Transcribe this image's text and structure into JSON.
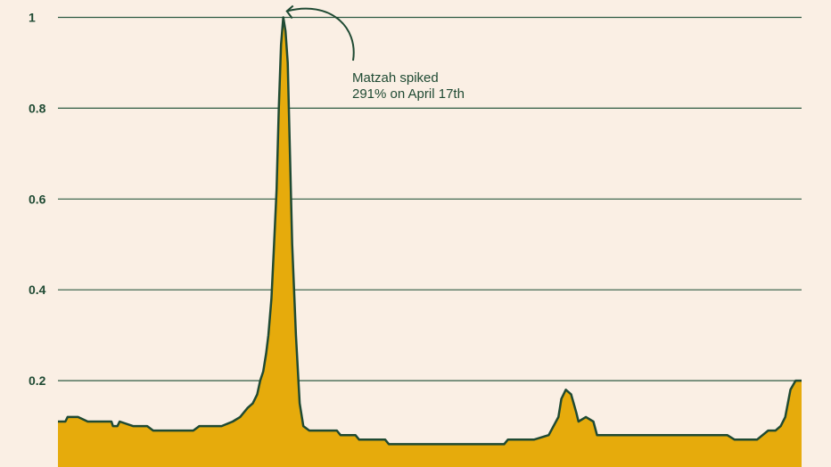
{
  "chart_data": {
    "type": "area",
    "title": "",
    "xlabel": "",
    "ylabel": "",
    "ylim": [
      0,
      1
    ],
    "yticks": [
      {
        "value": 1,
        "label": "1"
      },
      {
        "value": 0.8,
        "label": "0.8"
      },
      {
        "value": 0.6,
        "label": "0.6"
      },
      {
        "value": 0.4,
        "label": "0.4"
      },
      {
        "value": 0.2,
        "label": "0.2"
      }
    ],
    "grid": true,
    "colors": {
      "background": "#faefe4",
      "fill": "#e6ab0c",
      "line": "#1f4a33",
      "grid": "#2d5a41"
    },
    "series": [
      {
        "x": [
          0,
          0.01,
          0.013,
          0.027,
          0.04,
          0.072,
          0.074,
          0.08,
          0.083,
          0.101,
          0.12,
          0.128,
          0.145,
          0.182,
          0.19,
          0.2,
          0.22,
          0.235,
          0.245,
          0.255,
          0.262,
          0.268,
          0.272,
          0.276,
          0.28,
          0.283,
          0.287,
          0.29,
          0.294,
          0.297,
          0.3,
          0.303,
          0.306,
          0.309,
          0.312,
          0.315,
          0.32,
          0.325,
          0.33,
          0.338,
          0.35,
          0.375,
          0.38,
          0.4,
          0.405,
          0.44,
          0.445,
          0.6,
          0.605,
          0.64,
          0.66,
          0.673,
          0.677,
          0.683,
          0.69,
          0.697,
          0.7,
          0.71,
          0.72,
          0.725,
          0.748,
          0.77,
          0.9,
          0.91,
          0.94,
          0.955,
          0.965,
          0.972,
          0.978,
          0.985,
          0.992,
          1
        ],
        "y": [
          0.11,
          0.11,
          0.12,
          0.12,
          0.11,
          0.11,
          0.1,
          0.1,
          0.11,
          0.1,
          0.1,
          0.09,
          0.09,
          0.09,
          0.1,
          0.1,
          0.1,
          0.11,
          0.12,
          0.14,
          0.15,
          0.17,
          0.2,
          0.22,
          0.26,
          0.3,
          0.38,
          0.48,
          0.62,
          0.8,
          0.94,
          1.0,
          0.97,
          0.9,
          0.7,
          0.5,
          0.3,
          0.15,
          0.1,
          0.09,
          0.09,
          0.09,
          0.08,
          0.08,
          0.07,
          0.07,
          0.06,
          0.06,
          0.07,
          0.07,
          0.08,
          0.12,
          0.16,
          0.18,
          0.17,
          0.13,
          0.11,
          0.12,
          0.11,
          0.08,
          0.08,
          0.08,
          0.08,
          0.07,
          0.07,
          0.09,
          0.09,
          0.1,
          0.12,
          0.18,
          0.2,
          0.2
        ]
      }
    ],
    "annotation": {
      "text_line1": "Matzah spiked",
      "text_line2": "291% on April 17th",
      "target_x": 0.303,
      "target_y": 1.0
    }
  }
}
